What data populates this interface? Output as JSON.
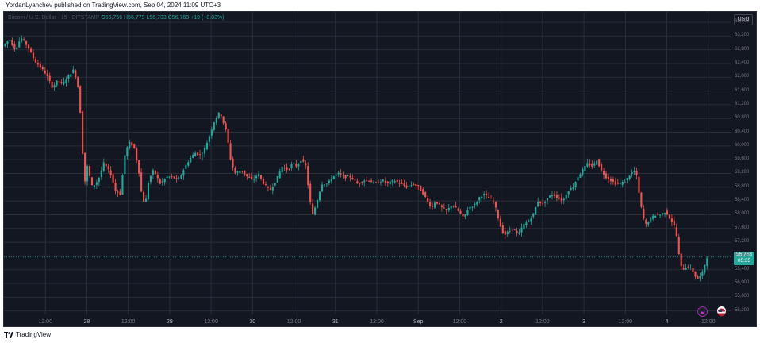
{
  "caption": "YordanLyanchev published on TradingView.com, Sep 04, 2024 11:09 UTC+3",
  "legend": {
    "symbol": "Bitcoin / U.S. Dollar · 15 · BITSTAMP",
    "ohlc": "O56,756 H56,779 L56,733 C56,768",
    "change": "+19 (+0.03%)"
  },
  "currency_button": "USD",
  "last_price": {
    "price": "56,768",
    "countdown": "05:35",
    "color": "#26a69a"
  },
  "brand": {
    "name": "TradingView"
  },
  "colors": {
    "up": "#26a69a",
    "down": "#ef5350",
    "background": "#131722",
    "grid": "#2a2e39"
  },
  "chart_data": {
    "type": "candlestick",
    "interval": "15",
    "y_axis": {
      "ticks": [
        "63,600",
        "63,200",
        "62,800",
        "62,400",
        "62,000",
        "61,600",
        "61,200",
        "60,800",
        "60,400",
        "60,000",
        "59,600",
        "59,200",
        "58,800",
        "58,400",
        "58,000",
        "57,600",
        "57,200",
        "56,800",
        "56,400",
        "56,000",
        "55,600",
        "55,200"
      ],
      "range": [
        55100,
        63900
      ]
    },
    "x_axis": {
      "ticks": [
        {
          "label": "12:00",
          "t": 0.5
        },
        {
          "label": "28",
          "t": 1.0
        },
        {
          "label": "12:00",
          "t": 1.5
        },
        {
          "label": "29",
          "t": 2.0
        },
        {
          "label": "12:00",
          "t": 2.5
        },
        {
          "label": "30",
          "t": 3.0
        },
        {
          "label": "12:00",
          "t": 3.5
        },
        {
          "label": "31",
          "t": 4.0
        },
        {
          "label": "12:00",
          "t": 4.5
        },
        {
          "label": "Sep",
          "t": 5.0
        },
        {
          "label": "12:00",
          "t": 5.5
        },
        {
          "label": "2",
          "t": 6.0
        },
        {
          "label": "12:00",
          "t": 6.5
        },
        {
          "label": "3",
          "t": 7.0
        },
        {
          "label": "12:00",
          "t": 7.5
        },
        {
          "label": "4",
          "t": 8.0
        },
        {
          "label": "12:00",
          "t": 8.5
        }
      ],
      "range": [
        0.0,
        8.78
      ]
    },
    "price_path": [
      [
        0.0,
        62900
      ],
      [
        0.08,
        63100
      ],
      [
        0.15,
        62800
      ],
      [
        0.22,
        63150
      ],
      [
        0.3,
        62900
      ],
      [
        0.38,
        62500
      ],
      [
        0.45,
        62300
      ],
      [
        0.52,
        62100
      ],
      [
        0.6,
        61700
      ],
      [
        0.66,
        61900
      ],
      [
        0.72,
        61800
      ],
      [
        0.78,
        62000
      ],
      [
        0.85,
        62200
      ],
      [
        0.9,
        61900
      ],
      [
        0.95,
        60600
      ],
      [
        0.98,
        58800
      ],
      [
        1.02,
        59400
      ],
      [
        1.08,
        58800
      ],
      [
        1.15,
        59000
      ],
      [
        1.22,
        59500
      ],
      [
        1.3,
        59200
      ],
      [
        1.36,
        58700
      ],
      [
        1.42,
        58600
      ],
      [
        1.47,
        59700
      ],
      [
        1.52,
        60100
      ],
      [
        1.58,
        60000
      ],
      [
        1.64,
        59300
      ],
      [
        1.68,
        58500
      ],
      [
        1.72,
        58300
      ],
      [
        1.76,
        59000
      ],
      [
        1.82,
        59300
      ],
      [
        1.9,
        58900
      ],
      [
        1.98,
        59100
      ],
      [
        2.05,
        59100
      ],
      [
        2.12,
        59000
      ],
      [
        2.18,
        59300
      ],
      [
        2.25,
        59600
      ],
      [
        2.32,
        59800
      ],
      [
        2.4,
        59700
      ],
      [
        2.48,
        60200
      ],
      [
        2.55,
        60700
      ],
      [
        2.62,
        61000
      ],
      [
        2.66,
        60700
      ],
      [
        2.7,
        60400
      ],
      [
        2.75,
        59600
      ],
      [
        2.8,
        59200
      ],
      [
        2.88,
        59300
      ],
      [
        2.95,
        59100
      ],
      [
        3.02,
        59000
      ],
      [
        3.08,
        59200
      ],
      [
        3.15,
        58900
      ],
      [
        3.22,
        58700
      ],
      [
        3.3,
        59000
      ],
      [
        3.37,
        59400
      ],
      [
        3.44,
        59300
      ],
      [
        3.5,
        59500
      ],
      [
        3.55,
        59400
      ],
      [
        3.6,
        59600
      ],
      [
        3.66,
        59400
      ],
      [
        3.7,
        58500
      ],
      [
        3.74,
        58000
      ],
      [
        3.78,
        58300
      ],
      [
        3.85,
        58900
      ],
      [
        3.92,
        58900
      ],
      [
        3.98,
        59100
      ],
      [
        4.05,
        59200
      ],
      [
        4.12,
        59100
      ],
      [
        4.2,
        59100
      ],
      [
        4.28,
        58900
      ],
      [
        4.35,
        59000
      ],
      [
        4.42,
        59000
      ],
      [
        4.5,
        58900
      ],
      [
        4.58,
        59000
      ],
      [
        4.65,
        58900
      ],
      [
        4.72,
        59000
      ],
      [
        4.8,
        58900
      ],
      [
        4.88,
        58800
      ],
      [
        4.95,
        58900
      ],
      [
        5.02,
        58800
      ],
      [
        5.08,
        58600
      ],
      [
        5.12,
        58400
      ],
      [
        5.18,
        58200
      ],
      [
        5.22,
        58400
      ],
      [
        5.3,
        58200
      ],
      [
        5.36,
        58100
      ],
      [
        5.42,
        58300
      ],
      [
        5.5,
        58100
      ],
      [
        5.56,
        57900
      ],
      [
        5.62,
        58200
      ],
      [
        5.7,
        58300
      ],
      [
        5.75,
        58500
      ],
      [
        5.8,
        58600
      ],
      [
        5.86,
        58500
      ],
      [
        5.92,
        58400
      ],
      [
        5.96,
        58100
      ],
      [
        6.0,
        57700
      ],
      [
        6.05,
        57400
      ],
      [
        6.1,
        57500
      ],
      [
        6.16,
        57600
      ],
      [
        6.22,
        57400
      ],
      [
        6.28,
        57700
      ],
      [
        6.34,
        57800
      ],
      [
        6.4,
        58000
      ],
      [
        6.46,
        58400
      ],
      [
        6.52,
        58300
      ],
      [
        6.58,
        58500
      ],
      [
        6.64,
        58600
      ],
      [
        6.7,
        58500
      ],
      [
        6.76,
        58400
      ],
      [
        6.82,
        58700
      ],
      [
        6.88,
        58800
      ],
      [
        6.94,
        59100
      ],
      [
        7.0,
        59300
      ],
      [
        7.06,
        59500
      ],
      [
        7.12,
        59400
      ],
      [
        7.17,
        59600
      ],
      [
        7.22,
        59300
      ],
      [
        7.28,
        59100
      ],
      [
        7.34,
        59000
      ],
      [
        7.4,
        58900
      ],
      [
        7.46,
        58900
      ],
      [
        7.52,
        59000
      ],
      [
        7.58,
        59200
      ],
      [
        7.64,
        59300
      ],
      [
        7.68,
        58600
      ],
      [
        7.72,
        58000
      ],
      [
        7.76,
        57700
      ],
      [
        7.82,
        57900
      ],
      [
        7.88,
        58000
      ],
      [
        7.94,
        58000
      ],
      [
        8.0,
        58100
      ],
      [
        8.05,
        57900
      ],
      [
        8.1,
        57700
      ],
      [
        8.14,
        57300
      ],
      [
        8.17,
        56600
      ],
      [
        8.2,
        56400
      ],
      [
        8.26,
        56500
      ],
      [
        8.32,
        56400
      ],
      [
        8.38,
        56100
      ],
      [
        8.44,
        56300
      ],
      [
        8.5,
        56768
      ]
    ]
  }
}
